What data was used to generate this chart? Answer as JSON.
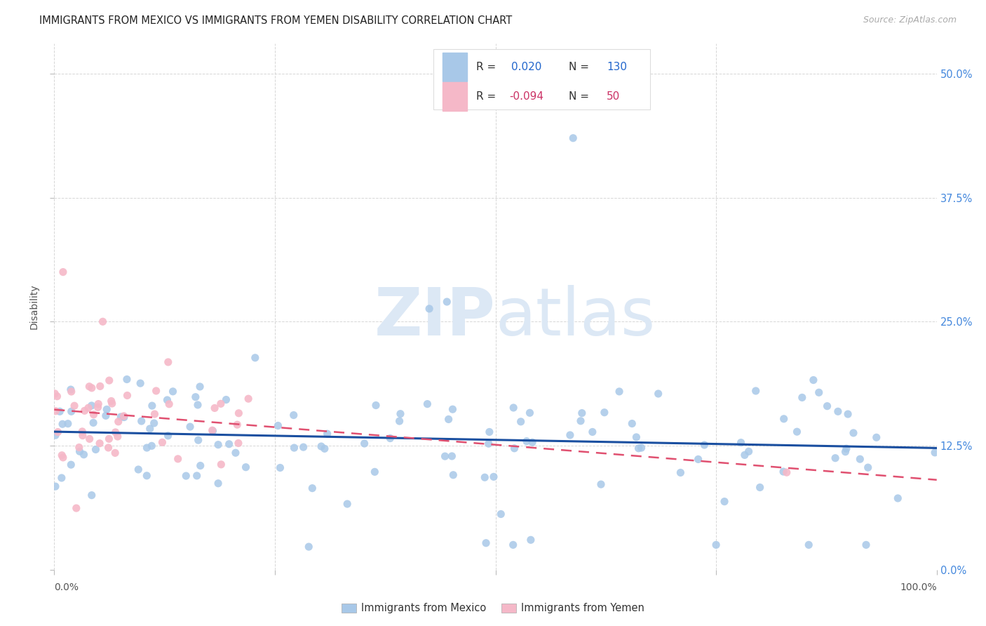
{
  "title": "IMMIGRANTS FROM MEXICO VS IMMIGRANTS FROM YEMEN DISABILITY CORRELATION CHART",
  "source": "Source: ZipAtlas.com",
  "ylabel": "Disability",
  "ytick_labels": [
    "0.0%",
    "12.5%",
    "25.0%",
    "37.5%",
    "50.0%"
  ],
  "ytick_values": [
    0.0,
    0.125,
    0.25,
    0.375,
    0.5
  ],
  "xlim": [
    0.0,
    1.0
  ],
  "ylim": [
    0.0,
    0.53
  ],
  "bg_color": "#ffffff",
  "grid_color": "#cccccc",
  "mexico_scatter_color": "#a8c8e8",
  "yemen_scatter_color": "#f5b8c8",
  "mexico_line_color": "#1a4fa0",
  "yemen_line_color": "#e05070",
  "watermark_color": "#dce8f5",
  "title_color": "#222222",
  "right_tick_color": "#4488dd",
  "legend_R_mexico_color": "#2266cc",
  "legend_R_yemen_color": "#cc3366",
  "legend_N_color": "#2266cc",
  "legend_N_yemen_color": "#cc3366",
  "legend_text_color": "#333333",
  "source_color": "#aaaaaa",
  "ylabel_color": "#555555",
  "xtick_color": "#555555"
}
